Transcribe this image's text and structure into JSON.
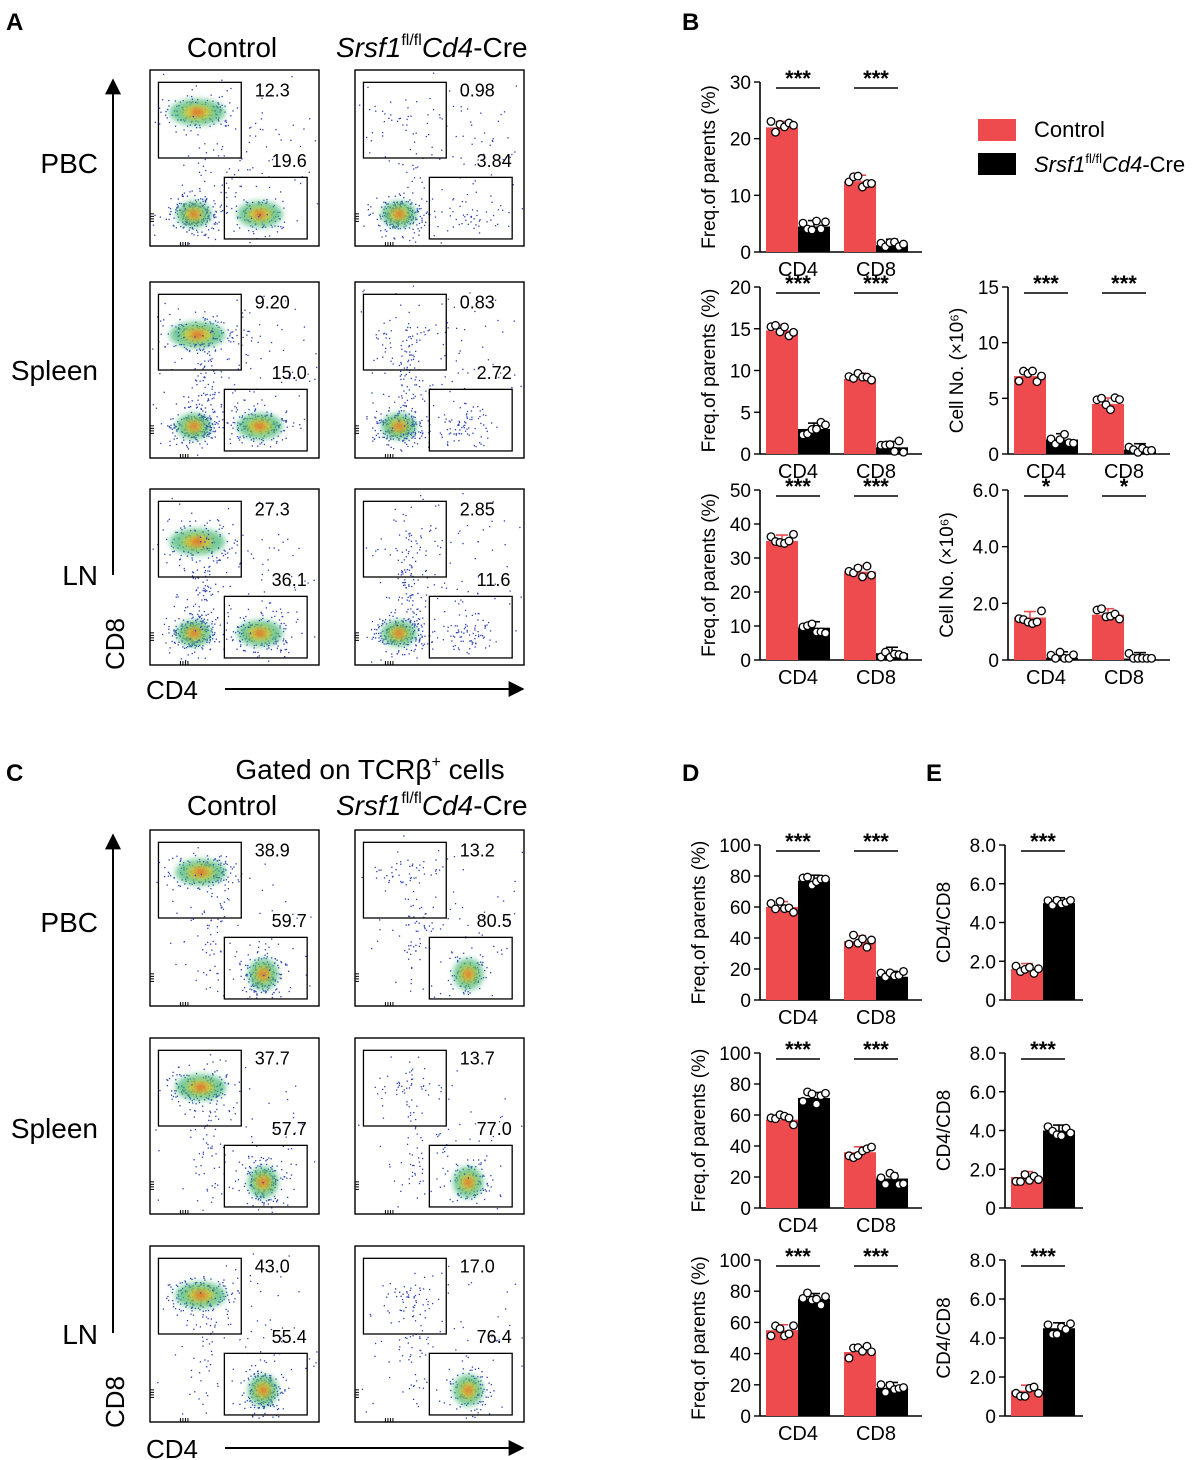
{
  "colors": {
    "control": "#EE4B4F",
    "ko": "#000000",
    "dot": "#1f3fbf"
  },
  "panel_labels": {
    "A": "A",
    "B": "B",
    "C": "C",
    "D": "D",
    "E": "E"
  },
  "flow_top": {
    "col_control": "Control",
    "col_ko_italic": "Srsf1",
    "col_ko_sup": "fl/fl",
    "col_ko_italic2": "Cd4",
    "col_ko_rest": "-Cre",
    "rows": [
      "PBC",
      "Spleen",
      "LN"
    ],
    "axis_y": "CD8",
    "axis_x": "CD4",
    "values": [
      [
        [
          "12.3",
          "19.6"
        ],
        [
          "0.98",
          "3.84"
        ]
      ],
      [
        [
          "9.20",
          "15.0"
        ],
        [
          "0.83",
          "2.72"
        ]
      ],
      [
        [
          "27.3",
          "36.1"
        ],
        [
          "2.85",
          "11.6"
        ]
      ]
    ]
  },
  "flow_bottom": {
    "title": "Gated on TCRβ",
    "title_sup": "+",
    "title_rest": " cells",
    "col_control": "Control",
    "rows": [
      "PBC",
      "Spleen",
      "LN"
    ],
    "axis_y": "CD8",
    "axis_x": "CD4",
    "values": [
      [
        [
          "38.9",
          "59.7"
        ],
        [
          "13.2",
          "80.5"
        ]
      ],
      [
        [
          "37.7",
          "57.7"
        ],
        [
          "13.7",
          "77.0"
        ]
      ],
      [
        [
          "43.0",
          "55.4"
        ],
        [
          "17.0",
          "76.4"
        ]
      ]
    ]
  },
  "legend": {
    "control": "Control",
    "ko_italic": "Srsf1",
    "ko_sup": "fl/fl",
    "ko_italic2": "Cd4",
    "ko_rest": "-Cre"
  },
  "chart_data": [
    {
      "id": "B1",
      "type": "bar",
      "categories": [
        "CD4",
        "CD8"
      ],
      "ylabel": "Freq.of parents (%)",
      "ylim": [
        0,
        30
      ],
      "ticks": [
        "0",
        "10",
        "20",
        "30"
      ],
      "series": [
        {
          "name": "Control",
          "values": [
            22.0,
            12.5
          ]
        },
        {
          "name": "Srsf1fl/flCd4-Cre",
          "values": [
            4.5,
            1.2
          ]
        }
      ],
      "significance": [
        "***",
        "***"
      ]
    },
    {
      "id": "B2",
      "type": "bar",
      "categories": [
        "CD4",
        "CD8"
      ],
      "ylabel": "Freq.of parents (%)",
      "ylim": [
        0,
        20
      ],
      "ticks": [
        "0",
        "5",
        "10",
        "15",
        "20"
      ],
      "series": [
        {
          "name": "Control",
          "values": [
            14.8,
            9.0
          ]
        },
        {
          "name": "Srsf1fl/flCd4-Cre",
          "values": [
            3.0,
            0.8
          ]
        }
      ],
      "significance": [
        "***",
        "***"
      ]
    },
    {
      "id": "B3",
      "type": "bar",
      "categories": [
        "CD4",
        "CD8"
      ],
      "ylabel": "Cell No. (×10⁶)",
      "ylim": [
        0,
        15
      ],
      "ticks": [
        "0",
        "5",
        "10",
        "15"
      ],
      "series": [
        {
          "name": "Control",
          "values": [
            7.0,
            4.5
          ]
        },
        {
          "name": "Srsf1fl/flCd4-Cre",
          "values": [
            1.3,
            0.4
          ]
        }
      ],
      "significance": [
        "***",
        "***"
      ]
    },
    {
      "id": "B4",
      "type": "bar",
      "categories": [
        "CD4",
        "CD8"
      ],
      "ylabel": "Freq.of parents (%)",
      "ylim": [
        0,
        50
      ],
      "ticks": [
        "0",
        "10",
        "20",
        "30",
        "40",
        "50"
      ],
      "series": [
        {
          "name": "Control",
          "values": [
            35.0,
            26.0
          ]
        },
        {
          "name": "Srsf1fl/flCd4-Cre",
          "values": [
            9.5,
            2.0
          ]
        }
      ],
      "significance": [
        "***",
        "***"
      ]
    },
    {
      "id": "B5",
      "type": "bar",
      "categories": [
        "CD4",
        "CD8"
      ],
      "ylabel": "Cell No. (×10⁶)",
      "ylim": [
        0,
        6
      ],
      "ticks": [
        "0",
        "2.0",
        "4.0",
        "6.0"
      ],
      "series": [
        {
          "name": "Control",
          "values": [
            1.5,
            1.6
          ]
        },
        {
          "name": "Srsf1fl/flCd4-Cre",
          "values": [
            0.08,
            0.05
          ]
        }
      ],
      "significance": [
        "*",
        "*"
      ]
    },
    {
      "id": "D1",
      "type": "bar",
      "categories": [
        "CD4",
        "CD8"
      ],
      "ylabel": "Freq.of parents (%)",
      "ylim": [
        0,
        100
      ],
      "ticks": [
        "0",
        "20",
        "40",
        "60",
        "80",
        "100"
      ],
      "series": [
        {
          "name": "Control",
          "values": [
            60,
            38
          ]
        },
        {
          "name": "Srsf1fl/flCd4-Cre",
          "values": [
            77,
            15
          ]
        }
      ],
      "significance": [
        "***",
        "***"
      ]
    },
    {
      "id": "D2",
      "type": "bar",
      "categories": [
        "CD4",
        "CD8"
      ],
      "ylabel": "Freq.of parents (%)",
      "ylim": [
        0,
        100
      ],
      "ticks": [
        "0",
        "20",
        "40",
        "60",
        "80",
        "100"
      ],
      "series": [
        {
          "name": "Control",
          "values": [
            57,
            36
          ]
        },
        {
          "name": "Srsf1fl/flCd4-Cre",
          "values": [
            71,
            19
          ]
        }
      ],
      "significance": [
        "***",
        "***"
      ]
    },
    {
      "id": "D3",
      "type": "bar",
      "categories": [
        "CD4",
        "CD8"
      ],
      "ylabel": "Freq.of parents (%)",
      "ylim": [
        0,
        100
      ],
      "ticks": [
        "0",
        "20",
        "40",
        "60",
        "80",
        "100"
      ],
      "series": [
        {
          "name": "Control",
          "values": [
            55,
            41
          ]
        },
        {
          "name": "Srsf1fl/flCd4-Cre",
          "values": [
            75,
            18
          ]
        }
      ],
      "significance": [
        "***",
        "***"
      ]
    },
    {
      "id": "E1",
      "type": "bar",
      "categories": [
        ""
      ],
      "ylabel": "CD4/CD8",
      "ylim": [
        0,
        8
      ],
      "ticks": [
        "0",
        "2.0",
        "4.0",
        "6.0",
        "8.0"
      ],
      "series": [
        {
          "name": "Control",
          "values": [
            1.6
          ]
        },
        {
          "name": "Srsf1fl/flCd4-Cre",
          "values": [
            5.0
          ]
        }
      ],
      "significance": [
        "***"
      ]
    },
    {
      "id": "E2",
      "type": "bar",
      "categories": [
        ""
      ],
      "ylabel": "CD4/CD8",
      "ylim": [
        0,
        8
      ],
      "ticks": [
        "0",
        "2.0",
        "4.0",
        "6.0",
        "8.0"
      ],
      "series": [
        {
          "name": "Control",
          "values": [
            1.6
          ]
        },
        {
          "name": "Srsf1fl/flCd4-Cre",
          "values": [
            4.0
          ]
        }
      ],
      "significance": [
        "***"
      ]
    },
    {
      "id": "E3",
      "type": "bar",
      "categories": [
        ""
      ],
      "ylabel": "CD4/CD8",
      "ylim": [
        0,
        8
      ],
      "ticks": [
        "0",
        "2.0",
        "4.0",
        "6.0",
        "8.0"
      ],
      "series": [
        {
          "name": "Control",
          "values": [
            1.3
          ]
        },
        {
          "name": "Srsf1fl/flCd4-Cre",
          "values": [
            4.5
          ]
        }
      ],
      "significance": [
        "***"
      ]
    }
  ]
}
